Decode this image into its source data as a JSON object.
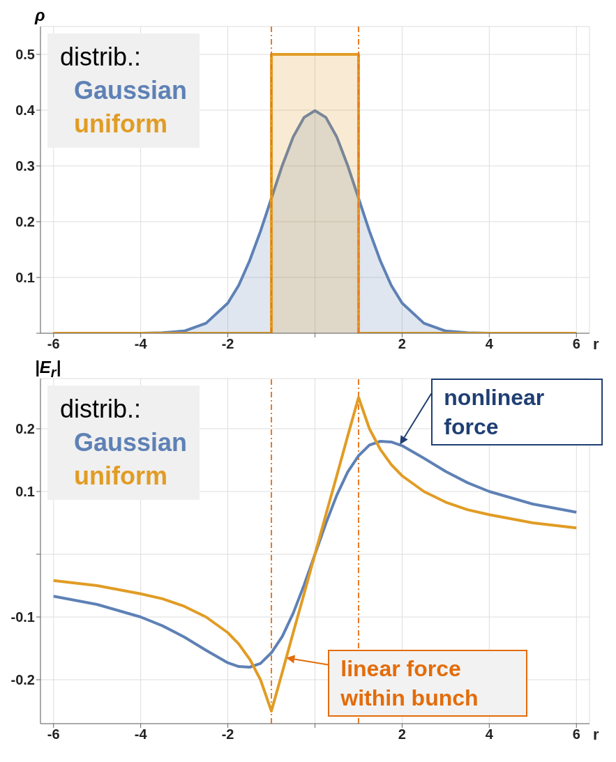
{
  "chart_data": [
    {
      "type": "area",
      "ylabel": "ρ",
      "xlabel": "r",
      "legend_title": "distrib.:",
      "legend": "top left",
      "grid": true,
      "xlim": [
        -6.3,
        6.3
      ],
      "ylim": [
        0,
        0.55
      ],
      "xticks": [
        -6,
        -4,
        -2,
        {
          "value": 0,
          "label": null
        },
        2,
        4,
        6
      ],
      "yticks": [
        {
          "value": 0,
          "label": null
        },
        0.1,
        0.2,
        0.3,
        0.4,
        0.5
      ],
      "ref_lines": [
        {
          "axis": "x",
          "value": -1,
          "color": "#e87722",
          "line_style": "dashed"
        },
        {
          "axis": "x",
          "value": 1,
          "color": "#e87722",
          "line_style": "dashed"
        }
      ],
      "series": [
        {
          "name": "Gaussian",
          "color": "#5e81b5",
          "x": [
            -6,
            -4,
            -3.5,
            -3,
            -2.5,
            -2,
            -1.75,
            -1.5,
            -1.25,
            -1,
            -0.75,
            -0.5,
            -0.25,
            0,
            0.25,
            0.5,
            0.75,
            1,
            1.25,
            1.5,
            1.75,
            2,
            2.5,
            3,
            3.5,
            4,
            6
          ],
          "values": [
            0,
            0,
            0.001,
            0.004,
            0.018,
            0.054,
            0.086,
            0.13,
            0.183,
            0.242,
            0.301,
            0.352,
            0.387,
            0.399,
            0.387,
            0.352,
            0.301,
            0.242,
            0.183,
            0.13,
            0.086,
            0.054,
            0.018,
            0.004,
            0.001,
            0,
            0
          ]
        },
        {
          "name": "uniform",
          "color": "#e19c24",
          "x": [
            -6,
            -1,
            -1,
            1,
            1,
            6
          ],
          "values": [
            0,
            0,
            0.5,
            0.5,
            0,
            0
          ]
        }
      ]
    },
    {
      "type": "line",
      "ylabel": "|E$_{r}$|",
      "xlabel": "r",
      "legend_title": "distrib.:",
      "legend": "top left",
      "grid": true,
      "xlim": [
        -6.3,
        6.3
      ],
      "ylim": [
        -0.27,
        0.28
      ],
      "xticks": [
        -6,
        -4,
        -2,
        {
          "value": 0,
          "label": null
        },
        2,
        4,
        6
      ],
      "yticks": [
        -0.2,
        -0.1,
        {
          "value": 0,
          "label": null
        },
        0.1,
        0.2
      ],
      "ref_lines": [
        {
          "axis": "x",
          "value": -1,
          "color": "#e87722",
          "line_style": "dashed"
        },
        {
          "axis": "x",
          "value": 1,
          "color": "#e87722",
          "line_style": "dashed"
        }
      ],
      "annotations": [
        {
          "text": "nonlinear force",
          "x": 1.95,
          "y": 0.175
        },
        {
          "text": "linear force within bunch",
          "x": -0.66,
          "y": -0.165
        }
      ],
      "series": [
        {
          "name": "Gaussian",
          "color": "#5e81b5",
          "x": [
            -6,
            -5,
            -4,
            -3.5,
            -3,
            -2.5,
            -2,
            -1.75,
            -1.5,
            -1.25,
            -1,
            -0.75,
            -0.5,
            -0.25,
            0,
            0.25,
            0.5,
            0.75,
            1,
            1.25,
            1.5,
            1.75,
            2,
            2.5,
            3,
            3.5,
            4,
            5,
            6
          ],
          "values": [
            -0.067,
            -0.08,
            -0.1,
            -0.114,
            -0.132,
            -0.153,
            -0.173,
            -0.179,
            -0.18,
            -0.174,
            -0.157,
            -0.131,
            -0.094,
            -0.049,
            0,
            0.049,
            0.094,
            0.131,
            0.157,
            0.174,
            0.18,
            0.179,
            0.173,
            0.153,
            0.132,
            0.114,
            0.1,
            0.08,
            0.067
          ]
        },
        {
          "name": "uniform",
          "color": "#e19c24",
          "x": [
            -6,
            -5,
            -4,
            -3.5,
            -3,
            -2.5,
            -2,
            -1.75,
            -1.5,
            -1.25,
            -1,
            -0.75,
            -0.5,
            -0.25,
            0,
            0.25,
            0.5,
            0.75,
            1,
            1.25,
            1.5,
            1.75,
            2,
            2.5,
            3,
            3.5,
            4,
            5,
            6
          ],
          "values": [
            -0.042,
            -0.05,
            -0.063,
            -0.071,
            -0.083,
            -0.1,
            -0.125,
            -0.143,
            -0.167,
            -0.2,
            -0.25,
            -0.188,
            -0.125,
            -0.063,
            0,
            0.063,
            0.125,
            0.188,
            0.25,
            0.2,
            0.167,
            0.143,
            0.125,
            0.1,
            0.083,
            0.071,
            0.063,
            0.05,
            0.042
          ]
        }
      ]
    }
  ]
}
